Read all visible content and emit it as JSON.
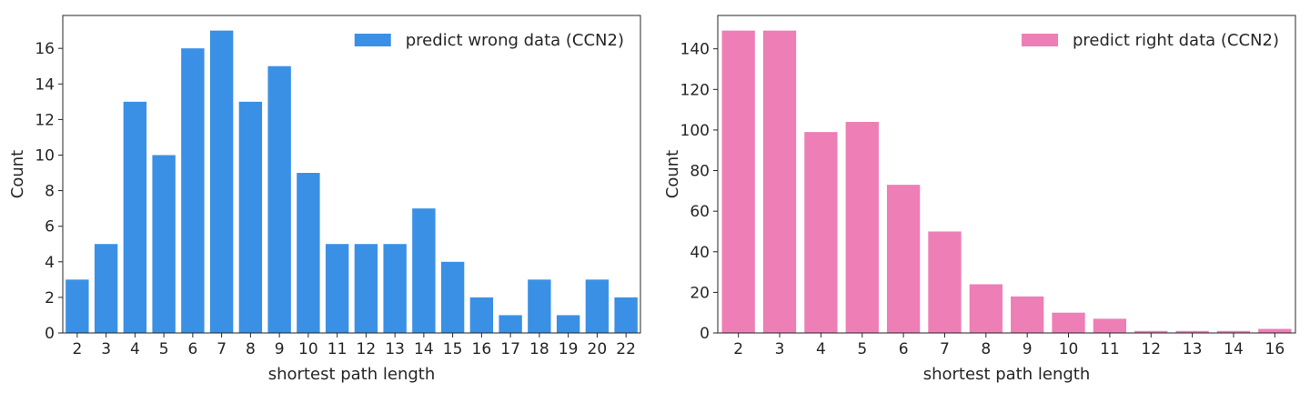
{
  "chart_data": [
    {
      "type": "bar",
      "color": "#3a90e5",
      "categories": [
        "2",
        "3",
        "4",
        "5",
        "6",
        "7",
        "8",
        "9",
        "10",
        "11",
        "12",
        "13",
        "14",
        "15",
        "16",
        "17",
        "18",
        "19",
        "20",
        "22"
      ],
      "series": [
        {
          "name": "predict wrong data (CCN2)",
          "values": [
            3,
            5,
            13,
            10,
            16,
            17,
            13,
            15,
            9,
            5,
            5,
            5,
            7,
            4,
            2,
            1,
            3,
            1,
            3,
            2
          ]
        }
      ],
      "xlabel": "shortest path length",
      "ylabel": "Count",
      "ylim": [
        0,
        17.85
      ],
      "yticks": [
        0,
        2,
        4,
        6,
        8,
        10,
        12,
        14,
        16
      ],
      "legend": "top-right",
      "grid": false
    },
    {
      "type": "bar",
      "color": "#ee7eb6",
      "categories": [
        "2",
        "3",
        "4",
        "5",
        "6",
        "7",
        "8",
        "9",
        "10",
        "11",
        "12",
        "13",
        "14",
        "16"
      ],
      "series": [
        {
          "name": "predict right data (CCN2)",
          "values": [
            149,
            149,
            99,
            104,
            73,
            50,
            24,
            18,
            10,
            7,
            1,
            1,
            1,
            2
          ]
        }
      ],
      "xlabel": "shortest path length",
      "ylabel": "Count",
      "ylim": [
        0,
        156.45
      ],
      "yticks": [
        0,
        20,
        40,
        60,
        80,
        100,
        120,
        140
      ],
      "legend": "top-right",
      "grid": false
    }
  ]
}
